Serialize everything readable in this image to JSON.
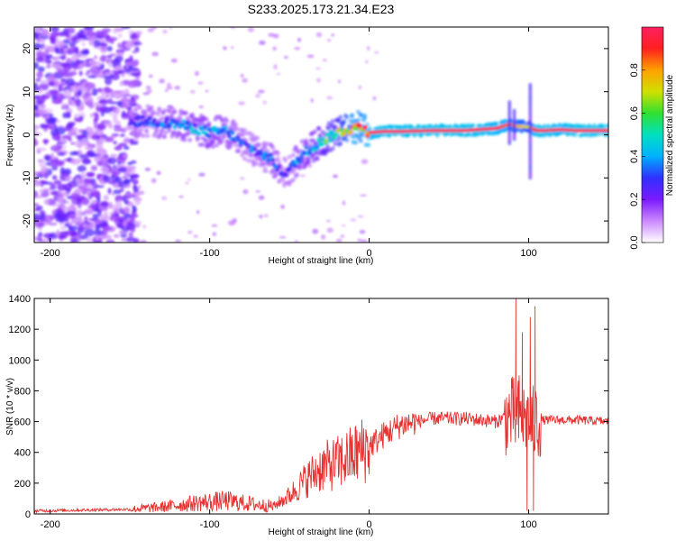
{
  "title": "S233.2025.173.21.34.E23",
  "chart_data": [
    {
      "type": "heatmap",
      "xlabel": "Height of straight line (km)",
      "ylabel": "Frequency (Hz)",
      "xlim": [
        -210,
        150
      ],
      "ylim": [
        -25,
        25
      ],
      "xticks": [
        -200,
        -100,
        0,
        100
      ],
      "yticks": [
        -20,
        -10,
        0,
        10,
        20
      ],
      "colorbar": {
        "label": "Normalized spectral amplitude",
        "range": [
          0.0,
          1.0
        ],
        "ticks": [
          0.0,
          0.2,
          0.4,
          0.6,
          0.8
        ],
        "tick_labels": [
          "0.0",
          "0.2",
          "0.4",
          "0.6",
          "0.8"
        ],
        "colors": [
          "#ffffff",
          "#cc88ff",
          "#7a1aff",
          "#3030ff",
          "#00b0ff",
          "#00e0c0",
          "#30e030",
          "#d0e000",
          "#ffa000",
          "#ff2020",
          "#ff2060"
        ]
      },
      "ridge": {
        "x": [
          -150,
          -140,
          -120,
          -100,
          -90,
          -80,
          -70,
          -60,
          -55,
          -50,
          -45,
          -40,
          -30,
          -20,
          -10,
          -5,
          0,
          10,
          20,
          40,
          60,
          80,
          88,
          92,
          100,
          105,
          110,
          120,
          130,
          150
        ],
        "y": [
          3,
          3.2,
          2.5,
          0.5,
          1,
          -2,
          -4,
          -6,
          -9,
          -8,
          -6,
          -4,
          -1.5,
          0.5,
          1.5,
          2,
          0.5,
          0.8,
          0.8,
          1,
          1,
          1.5,
          2.5,
          2,
          1.8,
          1,
          1,
          1.2,
          1,
          1
        ],
        "amplitude": [
          0.25,
          0.3,
          0.35,
          0.4,
          0.35,
          0.3,
          0.3,
          0.35,
          0.25,
          0.3,
          0.35,
          0.4,
          0.5,
          0.6,
          0.85,
          0.8,
          0.9,
          0.95,
          0.95,
          0.95,
          0.95,
          0.9,
          0.85,
          0.8,
          0.7,
          0.95,
          0.95,
          0.9,
          0.95,
          0.95
        ]
      }
    },
    {
      "type": "line",
      "xlabel": "Height of straight line (km)",
      "ylabel": "SNR (10 * v/v)",
      "xlim": [
        -210,
        150
      ],
      "ylim": [
        0,
        1400
      ],
      "xticks": [
        -200,
        -100,
        0,
        100
      ],
      "yticks": [
        0,
        200,
        400,
        600,
        800,
        1000,
        1200,
        1400
      ],
      "color": "#e83030",
      "trend": {
        "x": [
          -210,
          -180,
          -150,
          -130,
          -110,
          -90,
          -70,
          -60,
          -50,
          -40,
          -30,
          -20,
          -10,
          0,
          10,
          20,
          30,
          40,
          60,
          80,
          85,
          90,
          95,
          100,
          103,
          105,
          110,
          130,
          150
        ],
        "y": [
          20,
          25,
          30,
          45,
          70,
          85,
          60,
          50,
          120,
          220,
          300,
          330,
          380,
          440,
          520,
          580,
          600,
          620,
          620,
          600,
          630,
          640,
          620,
          600,
          580,
          600,
          610,
          610,
          600
        ]
      },
      "spikes": [
        {
          "x": 92,
          "y": 1400
        },
        {
          "x": 94,
          "y": 900
        },
        {
          "x": 96,
          "y": 1180
        },
        {
          "x": 99,
          "y": 20
        },
        {
          "x": 101,
          "y": 1280
        },
        {
          "x": 103,
          "y": 20
        },
        {
          "x": 104,
          "y": 1350
        },
        {
          "x": 90,
          "y": 800
        },
        {
          "x": 88,
          "y": 700
        }
      ]
    }
  ]
}
